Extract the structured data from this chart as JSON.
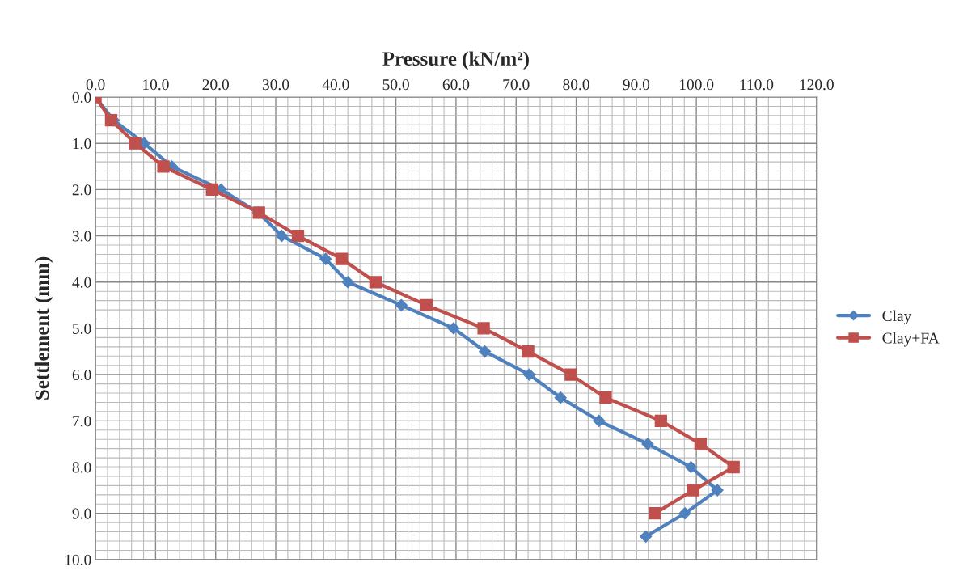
{
  "chart_data": {
    "type": "line",
    "xlabel": "Pressure (kN/m²)",
    "ylabel": "Settlement (mm)",
    "xlim": [
      0,
      120
    ],
    "ylim": [
      10,
      0
    ],
    "xticks": [
      {
        "value": 0,
        "label": "0.0"
      },
      {
        "value": 10,
        "label": "10.0"
      },
      {
        "value": 20,
        "label": "20.0"
      },
      {
        "value": 30,
        "label": "30.0"
      },
      {
        "value": 40,
        "label": "40.0"
      },
      {
        "value": 50,
        "label": "50.0"
      },
      {
        "value": 60,
        "label": "60.0"
      },
      {
        "value": 70,
        "label": "70.0"
      },
      {
        "value": 80,
        "label": "80.0"
      },
      {
        "value": 90,
        "label": "90.0"
      },
      {
        "value": 100,
        "label": "100.0"
      },
      {
        "value": 110,
        "label": "110.0"
      },
      {
        "value": 120,
        "label": "120.0"
      }
    ],
    "yticks": [
      {
        "value": 0,
        "label": "0.0"
      },
      {
        "value": 1,
        "label": "1.0"
      },
      {
        "value": 2,
        "label": "2.0"
      },
      {
        "value": 3,
        "label": "3.0"
      },
      {
        "value": 4,
        "label": "4.0"
      },
      {
        "value": 5,
        "label": "5.0"
      },
      {
        "value": 6,
        "label": "6.0"
      },
      {
        "value": 7,
        "label": "7.0"
      },
      {
        "value": 8,
        "label": "8.0"
      },
      {
        "value": 9,
        "label": "9.0"
      },
      {
        "value": 10,
        "label": "10.0"
      }
    ],
    "grid": true,
    "legend": "right",
    "series": [
      {
        "name": "Clay",
        "color": "#4f81bd",
        "marker": "diamond",
        "x": [
          0,
          3.0,
          8.1,
          12.7,
          20.9,
          27.1,
          31.0,
          38.3,
          42.0,
          50.9,
          59.6,
          64.8,
          72.2,
          77.4,
          83.8,
          91.9,
          99.1,
          103.5,
          98.1,
          91.6
        ],
        "values": [
          0,
          0.5,
          1.0,
          1.5,
          2.0,
          2.5,
          3.0,
          3.5,
          4.0,
          4.5,
          5.0,
          5.5,
          6.0,
          6.5,
          7.0,
          7.5,
          8.0,
          8.5,
          9.0,
          9.5
        ]
      },
      {
        "name": "Clay+FA",
        "color": "#c0504d",
        "marker": "square",
        "x": [
          0,
          2.6,
          6.6,
          11.3,
          19.4,
          27.2,
          33.7,
          41.0,
          46.6,
          55.1,
          64.6,
          72.0,
          79.1,
          84.9,
          94.1,
          100.7,
          106.2,
          99.5,
          93.1
        ],
        "values": [
          0,
          0.5,
          1.0,
          1.5,
          2.0,
          2.5,
          3.0,
          3.5,
          4.0,
          4.5,
          5.0,
          5.5,
          6.0,
          6.5,
          7.0,
          7.5,
          8.0,
          8.5,
          9.0
        ]
      }
    ]
  }
}
